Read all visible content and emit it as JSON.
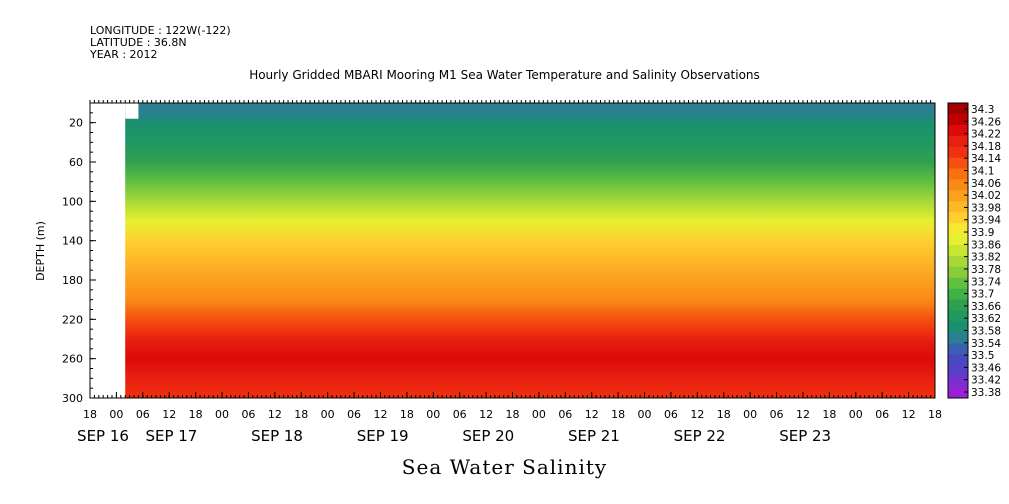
{
  "header": {
    "longitude": "LONGITUDE : 122W(-122)",
    "latitude": "LATITUDE : 36.8N",
    "year": "YEAR : 2012"
  },
  "chart_data": {
    "type": "heatmap",
    "title": "Hourly Gridded MBARI Mooring M1 Sea Water Temperature and Salinity Observations",
    "xlabel": "Sea Water Salinity",
    "ylabel": "DEPTH (m)",
    "y_axis": {
      "range": [
        300,
        0
      ],
      "ticks": [
        20,
        60,
        100,
        140,
        180,
        220,
        260,
        300
      ]
    },
    "x_axis": {
      "hour_ticks": [
        "18",
        "00",
        "06",
        "12",
        "18",
        "00",
        "06",
        "12",
        "18",
        "00",
        "06",
        "12",
        "18",
        "00",
        "06",
        "12",
        "18",
        "00",
        "06",
        "12",
        "18",
        "00",
        "06",
        "12",
        "18",
        "00",
        "06",
        "12",
        "18",
        "00",
        "06",
        "12",
        "18"
      ],
      "date_labels": [
        "SEP 16",
        "SEP 17",
        "SEP 18",
        "SEP 19",
        "SEP 20",
        "SEP 21",
        "SEP 22",
        "SEP 23"
      ]
    },
    "colorbar": {
      "ticks": [
        "34.3",
        "34.26",
        "34.22",
        "34.18",
        "34.14",
        "34.1",
        "34.06",
        "34.02",
        "33.98",
        "33.94",
        "33.9",
        "33.86",
        "33.82",
        "33.78",
        "33.74",
        "33.7",
        "33.66",
        "33.62",
        "33.58",
        "33.54",
        "33.5",
        "33.46",
        "33.42",
        "33.38"
      ],
      "colors": [
        "#a00000",
        "#be0000",
        "#dc0a0a",
        "#e82010",
        "#f03010",
        "#f55010",
        "#f87010",
        "#fa8a18",
        "#fca020",
        "#fdb828",
        "#fdd030",
        "#f6e830",
        "#e6f030",
        "#c8e632",
        "#a8d838",
        "#88cc3a",
        "#60c040",
        "#40b048",
        "#30a050",
        "#209860",
        "#1a9070",
        "#2a8090",
        "#3a60b0",
        "#4848c0",
        "#5a40c8",
        "#7a30d0",
        "#9a20d8"
      ]
    },
    "depth_profile": [
      {
        "depth": 10,
        "value": 33.54
      },
      {
        "depth": 20,
        "value": 33.6
      },
      {
        "depth": 40,
        "value": 33.64
      },
      {
        "depth": 60,
        "value": 33.68
      },
      {
        "depth": 80,
        "value": 33.72
      },
      {
        "depth": 100,
        "value": 33.8
      },
      {
        "depth": 120,
        "value": 33.88
      },
      {
        "depth": 140,
        "value": 33.96
      },
      {
        "depth": 160,
        "value": 34.0
      },
      {
        "depth": 180,
        "value": 34.02
      },
      {
        "depth": 200,
        "value": 34.06
      },
      {
        "depth": 220,
        "value": 34.12
      },
      {
        "depth": 240,
        "value": 34.2
      },
      {
        "depth": 260,
        "value": 34.22
      },
      {
        "depth": 280,
        "value": 34.18
      },
      {
        "depth": 300,
        "value": 34.16
      }
    ],
    "no_data_region": [
      {
        "from": "SEP 16 18",
        "to": "SEP 17 02",
        "depth_from": 0,
        "depth_to": 300
      },
      {
        "from": "SEP 17 02",
        "to": "SEP 17 05",
        "depth_from": 0,
        "depth_to": 16
      }
    ],
    "grid": false
  }
}
